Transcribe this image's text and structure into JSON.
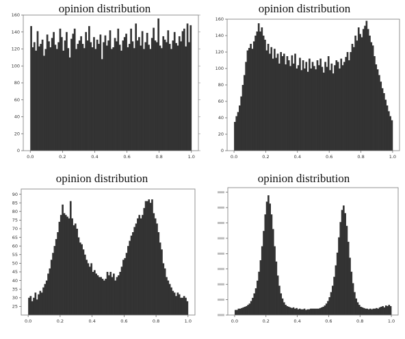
{
  "chart_data": [
    {
      "type": "bar",
      "title": "opinion distribution",
      "xlim": [
        0.0,
        1.0
      ],
      "ylim": [
        0,
        160
      ],
      "xticks": [
        "0.0",
        "0.2",
        "0.4",
        "0.6",
        "0.8",
        "1.0"
      ],
      "yticks": [
        "0",
        "20",
        "40",
        "60",
        "80",
        "100",
        "120",
        "140",
        "160"
      ],
      "bar_color": "#333333",
      "bins": 100,
      "values": [
        147,
        122,
        128,
        118,
        141,
        123,
        126,
        131,
        112,
        120,
        137,
        129,
        122,
        133,
        140,
        125,
        120,
        128,
        144,
        134,
        118,
        130,
        140,
        121,
        110,
        132,
        138,
        144,
        120,
        126,
        130,
        135,
        126,
        121,
        140,
        130,
        147,
        128,
        122,
        134,
        120,
        131,
        126,
        137,
        108,
        128,
        136,
        124,
        130,
        142,
        120,
        122,
        133,
        129,
        144,
        125,
        118,
        130,
        134,
        138,
        122,
        126,
        144,
        129,
        121,
        150,
        130,
        134,
        124,
        141,
        120,
        128,
        139,
        125,
        120,
        133,
        145,
        130,
        128,
        156,
        124,
        121,
        135,
        131,
        128,
        142,
        126,
        120,
        130,
        140,
        127,
        124,
        135,
        129,
        141,
        144,
        123,
        150,
        128,
        148
      ]
    },
    {
      "type": "bar",
      "title": "opinion distribution",
      "xlim": [
        0.0,
        1.0
      ],
      "ylim": [
        0,
        160
      ],
      "xticks": [
        "0.0",
        "0.2",
        "0.4",
        "0.6",
        "0.8",
        "1.0"
      ],
      "yticks": [
        "0",
        "20",
        "40",
        "60",
        "80",
        "100",
        "120",
        "140",
        "160"
      ],
      "bar_color": "#333333",
      "bins": 100,
      "values": [
        35,
        42,
        47,
        55,
        66,
        80,
        92,
        108,
        122,
        125,
        130,
        124,
        133,
        140,
        145,
        155,
        145,
        150,
        140,
        135,
        122,
        130,
        118,
        126,
        112,
        124,
        113,
        118,
        106,
        120,
        115,
        118,
        105,
        115,
        110,
        103,
        116,
        106,
        118,
        100,
        104,
        113,
        98,
        110,
        100,
        108,
        96,
        112,
        100,
        108,
        103,
        99,
        110,
        104,
        112,
        102,
        95,
        108,
        102,
        115,
        98,
        106,
        94,
        104,
        110,
        108,
        100,
        112,
        104,
        108,
        114,
        120,
        110,
        120,
        130,
        126,
        140,
        134,
        150,
        142,
        138,
        148,
        152,
        158,
        148,
        140,
        132,
        128,
        115,
        105,
        99,
        92,
        84,
        76,
        70,
        62,
        55,
        48,
        42,
        37
      ]
    },
    {
      "type": "bar",
      "title": "opinion distribution",
      "xlim": [
        0.0,
        1.0
      ],
      "ylim": [
        20,
        93
      ],
      "xticks": [
        "0.0",
        "0.2",
        "0.4",
        "0.6",
        "0.8",
        "1.0"
      ],
      "yticks": [
        "25",
        "30",
        "35",
        "40",
        "45",
        "50",
        "55",
        "60",
        "65",
        "70",
        "75",
        "80",
        "85",
        "90"
      ],
      "bar_color": "#333333",
      "bins": 100,
      "values": [
        30,
        31,
        28,
        30,
        33,
        29,
        32,
        34,
        33,
        36,
        38,
        40,
        44,
        47,
        52,
        56,
        60,
        64,
        68,
        74,
        78,
        84,
        79,
        78,
        77,
        76,
        86,
        76,
        72,
        73,
        70,
        65,
        62,
        61,
        58,
        55,
        52,
        50,
        48,
        50,
        45,
        46,
        44,
        43,
        42,
        42,
        41,
        40,
        41,
        45,
        43,
        45,
        42,
        44,
        40,
        42,
        43,
        45,
        48,
        52,
        53,
        56,
        60,
        63,
        66,
        68,
        71,
        73,
        76,
        78,
        76,
        78,
        82,
        86,
        86,
        87,
        85,
        87,
        79,
        76,
        73,
        68,
        62,
        58,
        50,
        47,
        42,
        40,
        38,
        36,
        34,
        33,
        31,
        33,
        32,
        30,
        30,
        31,
        30,
        28
      ]
    },
    {
      "type": "bar",
      "title": "opinion distribution",
      "xlim": [
        0.0,
        1.0
      ],
      "ylim": [
        0,
        200
      ],
      "xticks": [
        "0.0",
        "0.2",
        "0.4",
        "0.6",
        "0.8",
        "1.0"
      ],
      "bar_color": "#333333",
      "bins": 100,
      "values": [
        8,
        8,
        10,
        10,
        11,
        12,
        13,
        14,
        16,
        18,
        22,
        27,
        34,
        42,
        54,
        68,
        86,
        108,
        132,
        158,
        178,
        188,
        175,
        158,
        135,
        108,
        84,
        62,
        46,
        34,
        26,
        20,
        16,
        14,
        13,
        12,
        11,
        12,
        10,
        11,
        9,
        10,
        9,
        9,
        10,
        8,
        9,
        9,
        10,
        10,
        10,
        10,
        10,
        10,
        11,
        12,
        13,
        15,
        18,
        22,
        28,
        36,
        46,
        60,
        78,
        98,
        122,
        146,
        165,
        172,
        160,
        140,
        115,
        90,
        68,
        50,
        36,
        26,
        20,
        16,
        13,
        12,
        11,
        10,
        10,
        9,
        10,
        9,
        10,
        10,
        11,
        10,
        12,
        13,
        14,
        12,
        15,
        14,
        16,
        14
      ]
    }
  ]
}
